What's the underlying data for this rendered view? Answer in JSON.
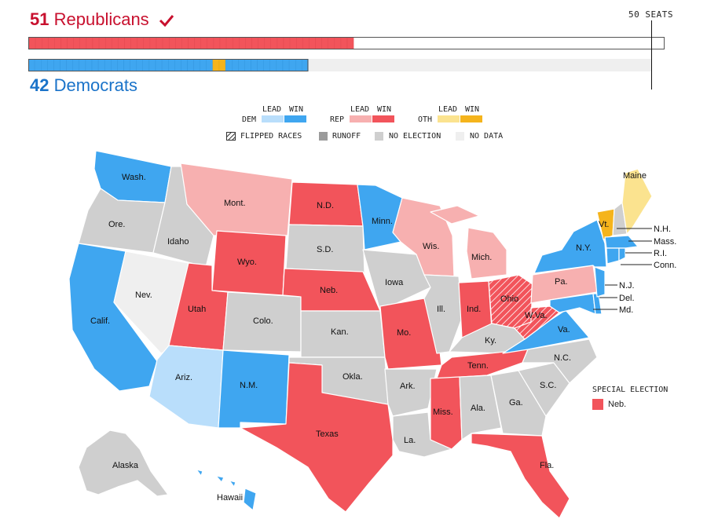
{
  "header": {
    "rep_count": "51",
    "rep_label": "Republicans",
    "dem_count": "42",
    "dem_label": "Democrats",
    "seats_label": "50 SEATS"
  },
  "legend": {
    "lead": "LEAD",
    "win": "WIN",
    "dem": "DEM",
    "rep": "REP",
    "oth": "OTH",
    "flipped": "FLIPPED RACES",
    "runoff": "RUNOFF",
    "no_election": "NO ELECTION",
    "no_data": "NO DATA"
  },
  "colors": {
    "dem_win": "#3fa6f0",
    "dem_lead": "#b9defb",
    "rep_win": "#f2545b",
    "rep_lead": "#f7b0b0",
    "oth_win": "#f5b41c",
    "oth_lead": "#fbe38f",
    "runoff": "#9b9b9b",
    "no_election": "#cfcfcf",
    "no_data": "#efefef"
  },
  "seat_bars": {
    "total_seats": 100,
    "rep_seats": 51,
    "dem_seats": 42,
    "oth_seats": 2
  },
  "states": {
    "wash": "Wash.",
    "ore": "Ore.",
    "calif": "Calif.",
    "nev": "Nev.",
    "idaho": "Idaho",
    "mont": "Mont.",
    "wyo": "Wyo.",
    "utah": "Utah",
    "ariz": "Ariz.",
    "colo": "Colo.",
    "nm": "N.M.",
    "nd": "N.D.",
    "sd": "S.D.",
    "neb": "Neb.",
    "kan": "Kan.",
    "okla": "Okla.",
    "texas": "Texas",
    "minn": "Minn.",
    "iowa": "Iowa",
    "mo": "Mo.",
    "ark": "Ark.",
    "la": "La.",
    "wis": "Wis.",
    "ill": "Ill.",
    "mich": "Mich.",
    "ind": "Ind.",
    "ohio": "Ohio",
    "ky": "Ky.",
    "tenn": "Tenn.",
    "miss": "Miss.",
    "ala": "Ala.",
    "ga": "Ga.",
    "fla": "Fla.",
    "sc": "S.C.",
    "nc": "N.C.",
    "va": "Va.",
    "wva": "W.Va.",
    "pa": "Pa.",
    "ny": "N.Y.",
    "vt": "Vt.",
    "maine": "Maine",
    "nh": "N.H.",
    "mass": "Mass.",
    "ri": "R.I.",
    "conn": "Conn.",
    "nj": "N.J.",
    "del": "Del.",
    "md": "Md.",
    "alaska": "Alaska",
    "hawaii": "Hawaii"
  },
  "special": {
    "title": "SPECIAL ELECTION",
    "state": "Neb."
  }
}
